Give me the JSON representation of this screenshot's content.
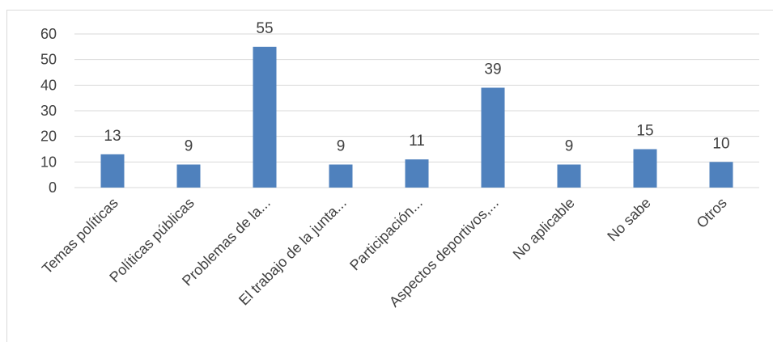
{
  "chart_data": {
    "type": "bar",
    "categories": [
      "Temas políticas",
      "Políticas públicas",
      "Problemas de la...",
      "El trabajo de la junta...",
      "Participación...",
      "Aspectos deportivos,...",
      "No aplicable",
      "No sabe",
      "Otros"
    ],
    "values": [
      13,
      9,
      55,
      9,
      11,
      39,
      9,
      15,
      10
    ],
    "ylim": [
      0,
      60
    ],
    "yticks": [
      0,
      10,
      20,
      30,
      40,
      50,
      60
    ],
    "data_labels": true,
    "grid": true,
    "colors": {
      "bar": "#4f81bd",
      "grid": "#d9d9d9",
      "text": "#404040"
    },
    "title": "",
    "xlabel": "",
    "ylabel": ""
  }
}
